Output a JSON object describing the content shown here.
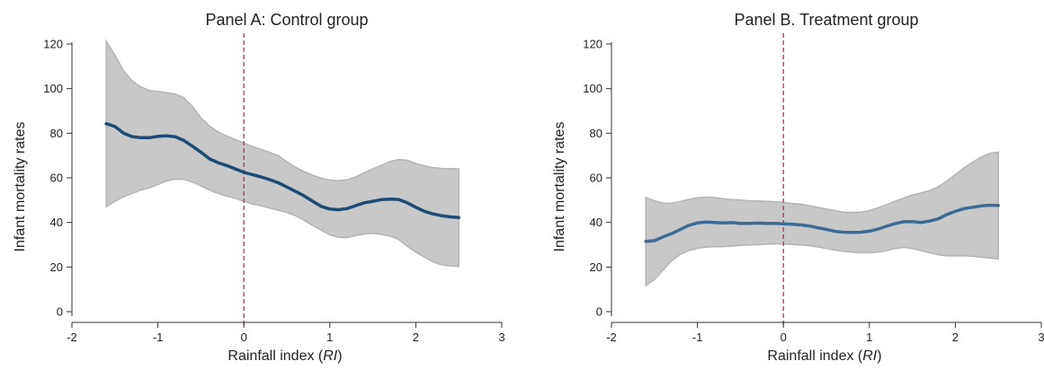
{
  "chart_data": [
    {
      "type": "line",
      "title": "Panel A: Control group",
      "xlabel": "Rainfall index (RI)",
      "xlabel_main": "Rainfall index (",
      "xlabel_italic": "RI",
      "xlabel_end": ")",
      "ylabel": "Infant mortality rates",
      "xlim": [
        -2,
        3
      ],
      "ylim": [
        0,
        120
      ],
      "xticks": [
        -2,
        -1,
        0,
        1,
        2,
        3
      ],
      "yticks": [
        0,
        20,
        40,
        60,
        80,
        100,
        120
      ],
      "xtick_labels": [
        "-2",
        "-1",
        "0",
        "1",
        "2",
        "3"
      ],
      "ytick_labels": [
        "0",
        "20",
        "40",
        "60",
        "80",
        "100",
        "120"
      ],
      "cutoff_x": 0,
      "grid": false,
      "colors": {
        "line": "#1f4a73",
        "band": "#c8c8c8",
        "band_edge": "#b5b5b5",
        "cutoff": "#b03070"
      },
      "series": [
        {
          "x": [
            -1.6,
            -1.5,
            -1.4,
            -1.3,
            -1.2,
            -1.1,
            -1.0,
            -0.9,
            -0.8,
            -0.7,
            -0.6,
            -0.5,
            -0.4,
            -0.3,
            -0.2,
            -0.1,
            0.0,
            0.1,
            0.2,
            0.3,
            0.4,
            0.5,
            0.6,
            0.7,
            0.8,
            0.9,
            1.0,
            1.1,
            1.2,
            1.3,
            1.4,
            1.5,
            1.6,
            1.7,
            1.8,
            1.9,
            2.0,
            2.1,
            2.2,
            2.3,
            2.4,
            2.5
          ],
          "y": [
            84.3,
            83.0,
            80.0,
            78.5,
            78.0,
            78.0,
            78.6,
            78.8,
            78.4,
            76.8,
            74.2,
            71.5,
            68.5,
            66.8,
            65.5,
            64.0,
            62.5,
            61.4,
            60.4,
            59.2,
            57.8,
            55.9,
            53.9,
            51.9,
            49.5,
            47.2,
            46.0,
            45.7,
            46.2,
            47.5,
            48.8,
            49.5,
            50.2,
            50.4,
            50.3,
            48.8,
            46.8,
            45.0,
            43.8,
            43.0,
            42.5,
            42.2
          ],
          "lower": [
            47.0,
            49.5,
            51.5,
            53.0,
            54.5,
            55.5,
            57.0,
            58.6,
            59.4,
            59.3,
            58.1,
            56.4,
            54.5,
            53.0,
            51.8,
            50.8,
            49.5,
            48.3,
            47.5,
            46.4,
            45.5,
            44.4,
            43.0,
            41.0,
            38.6,
            36.5,
            34.4,
            33.3,
            33.2,
            34.1,
            34.8,
            35.1,
            34.6,
            33.9,
            32.4,
            29.3,
            26.7,
            24.4,
            22.3,
            21.0,
            20.5,
            20.3
          ],
          "upper": [
            121.2,
            115.0,
            108.0,
            103.5,
            100.8,
            99.2,
            98.7,
            98.2,
            97.6,
            96.0,
            92.0,
            87.0,
            83.2,
            80.6,
            78.8,
            77.2,
            75.6,
            74.0,
            72.8,
            71.4,
            70.0,
            67.2,
            64.8,
            62.8,
            61.2,
            59.8,
            59.0,
            58.7,
            59.1,
            60.4,
            62.3,
            64.0,
            65.6,
            67.3,
            68.2,
            67.9,
            66.4,
            65.4,
            64.6,
            64.2,
            64.1,
            64.0
          ]
        }
      ]
    },
    {
      "type": "line",
      "title": "Panel B. Treatment group",
      "xlabel": "Rainfall index (RI)",
      "xlabel_main": "Rainfall index (",
      "xlabel_italic": "RI",
      "xlabel_end": ")",
      "ylabel": "Infant mortality rates",
      "xlim": [
        -2,
        3
      ],
      "ylim": [
        0,
        120
      ],
      "xticks": [
        -2,
        -1,
        0,
        1,
        2,
        3
      ],
      "yticks": [
        0,
        20,
        40,
        60,
        80,
        100,
        120
      ],
      "xtick_labels": [
        "-2",
        "-1",
        "0",
        "1",
        "2",
        "3"
      ],
      "ytick_labels": [
        "0",
        "20",
        "40",
        "60",
        "80",
        "100",
        "120"
      ],
      "cutoff_x": 0,
      "grid": false,
      "colors": {
        "line": "#3f6a92",
        "band": "#c8c8c8",
        "band_edge": "#b5b5b5",
        "cutoff": "#b03070"
      },
      "series": [
        {
          "x": [
            -1.6,
            -1.5,
            -1.4,
            -1.3,
            -1.2,
            -1.1,
            -1.0,
            -0.9,
            -0.8,
            -0.7,
            -0.6,
            -0.5,
            -0.4,
            -0.3,
            -0.2,
            -0.1,
            0.0,
            0.1,
            0.2,
            0.3,
            0.4,
            0.5,
            0.6,
            0.7,
            0.8,
            0.9,
            1.0,
            1.1,
            1.2,
            1.3,
            1.4,
            1.5,
            1.6,
            1.7,
            1.8,
            1.9,
            2.0,
            2.1,
            2.2,
            2.3,
            2.4,
            2.5
          ],
          "y": [
            31.5,
            31.8,
            33.5,
            35.0,
            36.8,
            38.7,
            39.8,
            40.2,
            40.0,
            39.8,
            39.9,
            39.6,
            39.6,
            39.7,
            39.6,
            39.6,
            39.4,
            39.2,
            38.9,
            38.4,
            37.6,
            36.9,
            36.0,
            35.6,
            35.5,
            35.6,
            36.1,
            37.0,
            38.3,
            39.5,
            40.3,
            40.4,
            40.0,
            40.6,
            41.6,
            43.5,
            45.0,
            46.2,
            46.8,
            47.4,
            47.7,
            47.6
          ],
          "lower": [
            11.7,
            14.4,
            18.6,
            22.8,
            25.7,
            27.4,
            28.4,
            28.9,
            29.1,
            29.1,
            29.4,
            29.7,
            29.9,
            30.0,
            30.2,
            30.4,
            30.3,
            30.1,
            29.9,
            29.6,
            29.0,
            28.3,
            27.6,
            27.0,
            26.6,
            26.4,
            26.4,
            26.7,
            27.3,
            28.3,
            28.8,
            28.3,
            27.3,
            26.4,
            25.5,
            25.0,
            25.0,
            25.1,
            24.8,
            24.4,
            24.0,
            23.6
          ],
          "upper": [
            51.2,
            49.7,
            48.7,
            48.6,
            49.4,
            50.3,
            51.1,
            51.4,
            51.2,
            50.6,
            50.2,
            50.0,
            49.7,
            49.6,
            49.5,
            49.3,
            49.0,
            48.5,
            48.2,
            47.5,
            46.8,
            46.0,
            45.3,
            44.6,
            44.5,
            44.6,
            45.3,
            46.6,
            48.0,
            49.5,
            51.0,
            52.3,
            53.2,
            54.3,
            56.0,
            58.5,
            61.5,
            64.5,
            67.0,
            69.3,
            71.0,
            71.5
          ]
        }
      ]
    }
  ]
}
